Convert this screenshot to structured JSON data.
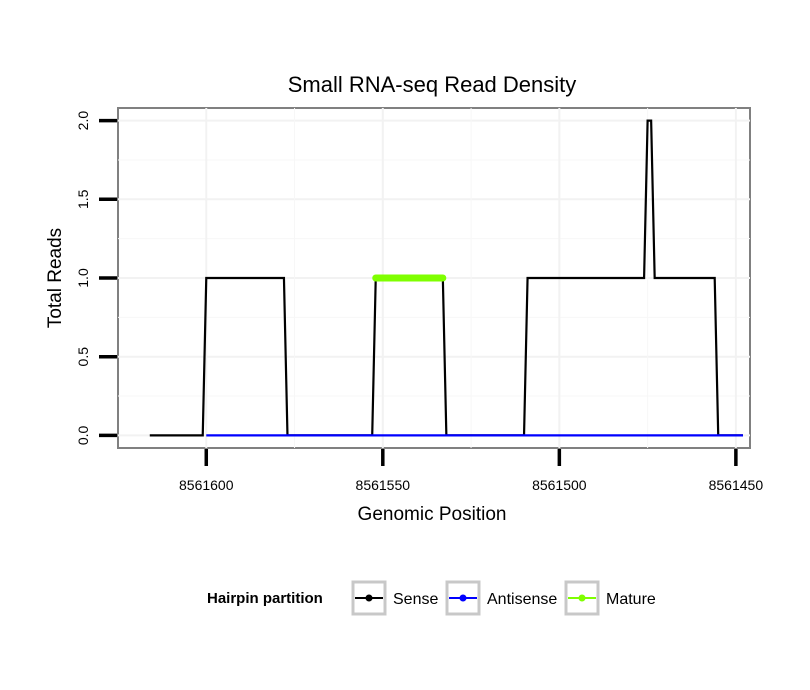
{
  "chart_data": {
    "type": "line",
    "title": "Small RNA-seq Read Density",
    "xlabel": "Genomic Position",
    "ylabel": "Total Reads",
    "x_reversed": true,
    "xlim": [
      8561625,
      8561446
    ],
    "ylim": [
      -0.08,
      2.08
    ],
    "x_ticks": [
      8561600,
      8561550,
      8561500,
      8561450
    ],
    "x_tick_labels": [
      "8561600",
      "8561550",
      "8561500",
      "8561450"
    ],
    "y_ticks": [
      0,
      0.5,
      1,
      1.5,
      2
    ],
    "y_tick_labels": [
      "0.0",
      "0.5",
      "1.0",
      "1.5",
      "2.0"
    ],
    "grid": true,
    "legend": {
      "title": "Hairpin partition",
      "placement": "bottom",
      "entries": [
        {
          "label": "Sense",
          "color": "#000000"
        },
        {
          "label": "Antisense",
          "color": "#0000ff"
        },
        {
          "label": "Mature",
          "color": "#7fff00"
        }
      ]
    },
    "series": [
      {
        "name": "Sense",
        "color": "#000000",
        "points": [
          [
            8561616,
            0
          ],
          [
            8561601,
            0
          ],
          [
            8561600,
            1
          ],
          [
            8561578,
            1
          ],
          [
            8561577,
            0
          ],
          [
            8561553,
            0
          ],
          [
            8561552,
            1
          ],
          [
            8561533,
            1
          ],
          [
            8561532,
            0
          ],
          [
            8561510,
            0
          ],
          [
            8561509,
            1
          ],
          [
            8561476,
            1
          ],
          [
            8561475,
            2
          ],
          [
            8561474,
            2
          ],
          [
            8561473,
            1
          ],
          [
            8561456,
            1
          ],
          [
            8561455,
            0
          ],
          [
            8561448,
            0
          ]
        ]
      },
      {
        "name": "Antisense",
        "color": "#0000ff",
        "points": [
          [
            8561600,
            0
          ],
          [
            8561448,
            0
          ]
        ]
      },
      {
        "name": "Mature",
        "color": "#7fff00",
        "points": [
          [
            8561552,
            1
          ],
          [
            8561533,
            1
          ]
        ]
      }
    ]
  }
}
